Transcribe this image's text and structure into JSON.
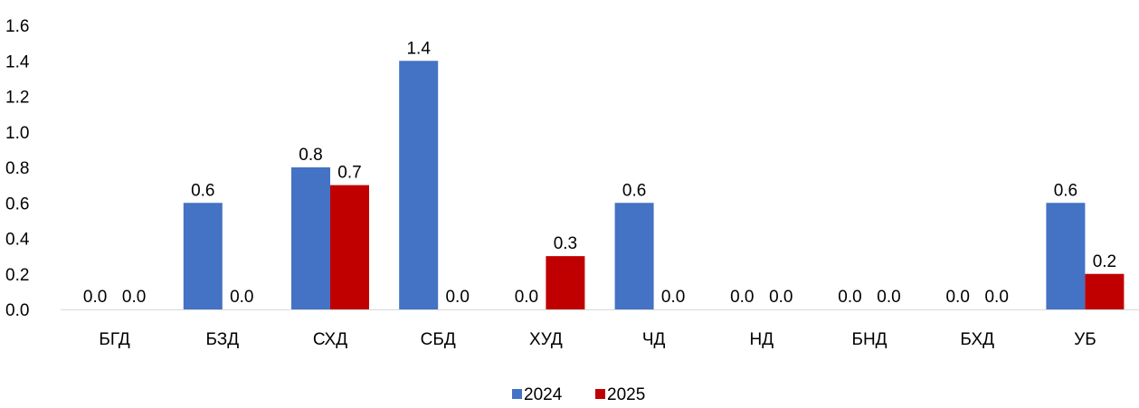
{
  "chart_data": {
    "type": "bar",
    "title": "",
    "xlabel": "",
    "ylabel": "",
    "categories": [
      "БГД",
      "БЗД",
      "СХД",
      "СБД",
      "ХУД",
      "ЧД",
      "НД",
      "БНД",
      "БХД",
      "УБ"
    ],
    "series": [
      {
        "name": "2024",
        "color": "#4472C4",
        "values": [
          0.0,
          0.6,
          0.8,
          1.4,
          0.0,
          0.6,
          0.0,
          0.0,
          0.0,
          0.6
        ],
        "labels": [
          "0.0",
          "0.6",
          "0.8",
          "1.4",
          "0.0",
          "0.6",
          "0.0",
          "0.0",
          "0.0",
          "0.6"
        ]
      },
      {
        "name": "2025",
        "color": "#C00000",
        "values": [
          0.0,
          0.0,
          0.7,
          0.0,
          0.3,
          0.0,
          0.0,
          0.0,
          0.0,
          0.2
        ],
        "labels": [
          "0.0",
          "0.0",
          "0.7",
          "0.0",
          "0.3",
          "0.0",
          "0.0",
          "0.0",
          "0.0",
          "0.2"
        ]
      }
    ],
    "ylim": [
      0,
      1.6
    ],
    "yticks": [
      "0.0",
      "0.2",
      "0.4",
      "0.6",
      "0.8",
      "1.0",
      "1.2",
      "1.4",
      "1.6"
    ],
    "grid": false,
    "legend_position": "bottom-center",
    "axis_color": "#D9D9D9"
  }
}
